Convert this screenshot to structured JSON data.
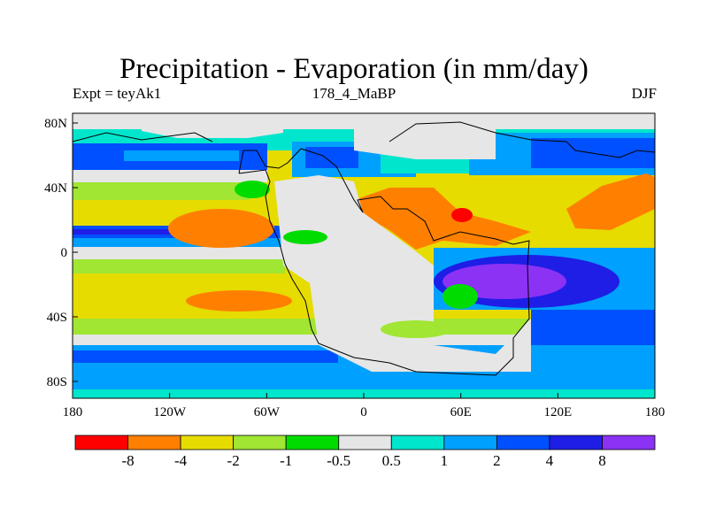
{
  "title": "Precipitation - Evaporation (in mm/day)",
  "subtitle_left": "Expt = teyAk1",
  "subtitle_center": "178_4_MaBP",
  "subtitle_right": "DJF",
  "lat_ticks": [
    "80N",
    "40N",
    "0",
    "40S",
    "80S"
  ],
  "lon_ticks": [
    "180",
    "120W",
    "60W",
    "0",
    "60E",
    "120E",
    "180"
  ],
  "colorbar": {
    "colors": [
      "#ff0000",
      "#ff8000",
      "#e6dc00",
      "#a0e632",
      "#00dc00",
      "#e6e6e6",
      "#00e6cd",
      "#00a0ff",
      "#0050ff",
      "#1e1ee6",
      "#8c32f5"
    ],
    "labels": [
      "-8",
      "-4",
      "-2",
      "-1",
      "-0.5",
      "0.5",
      "1",
      "2",
      "4",
      "8"
    ]
  }
}
